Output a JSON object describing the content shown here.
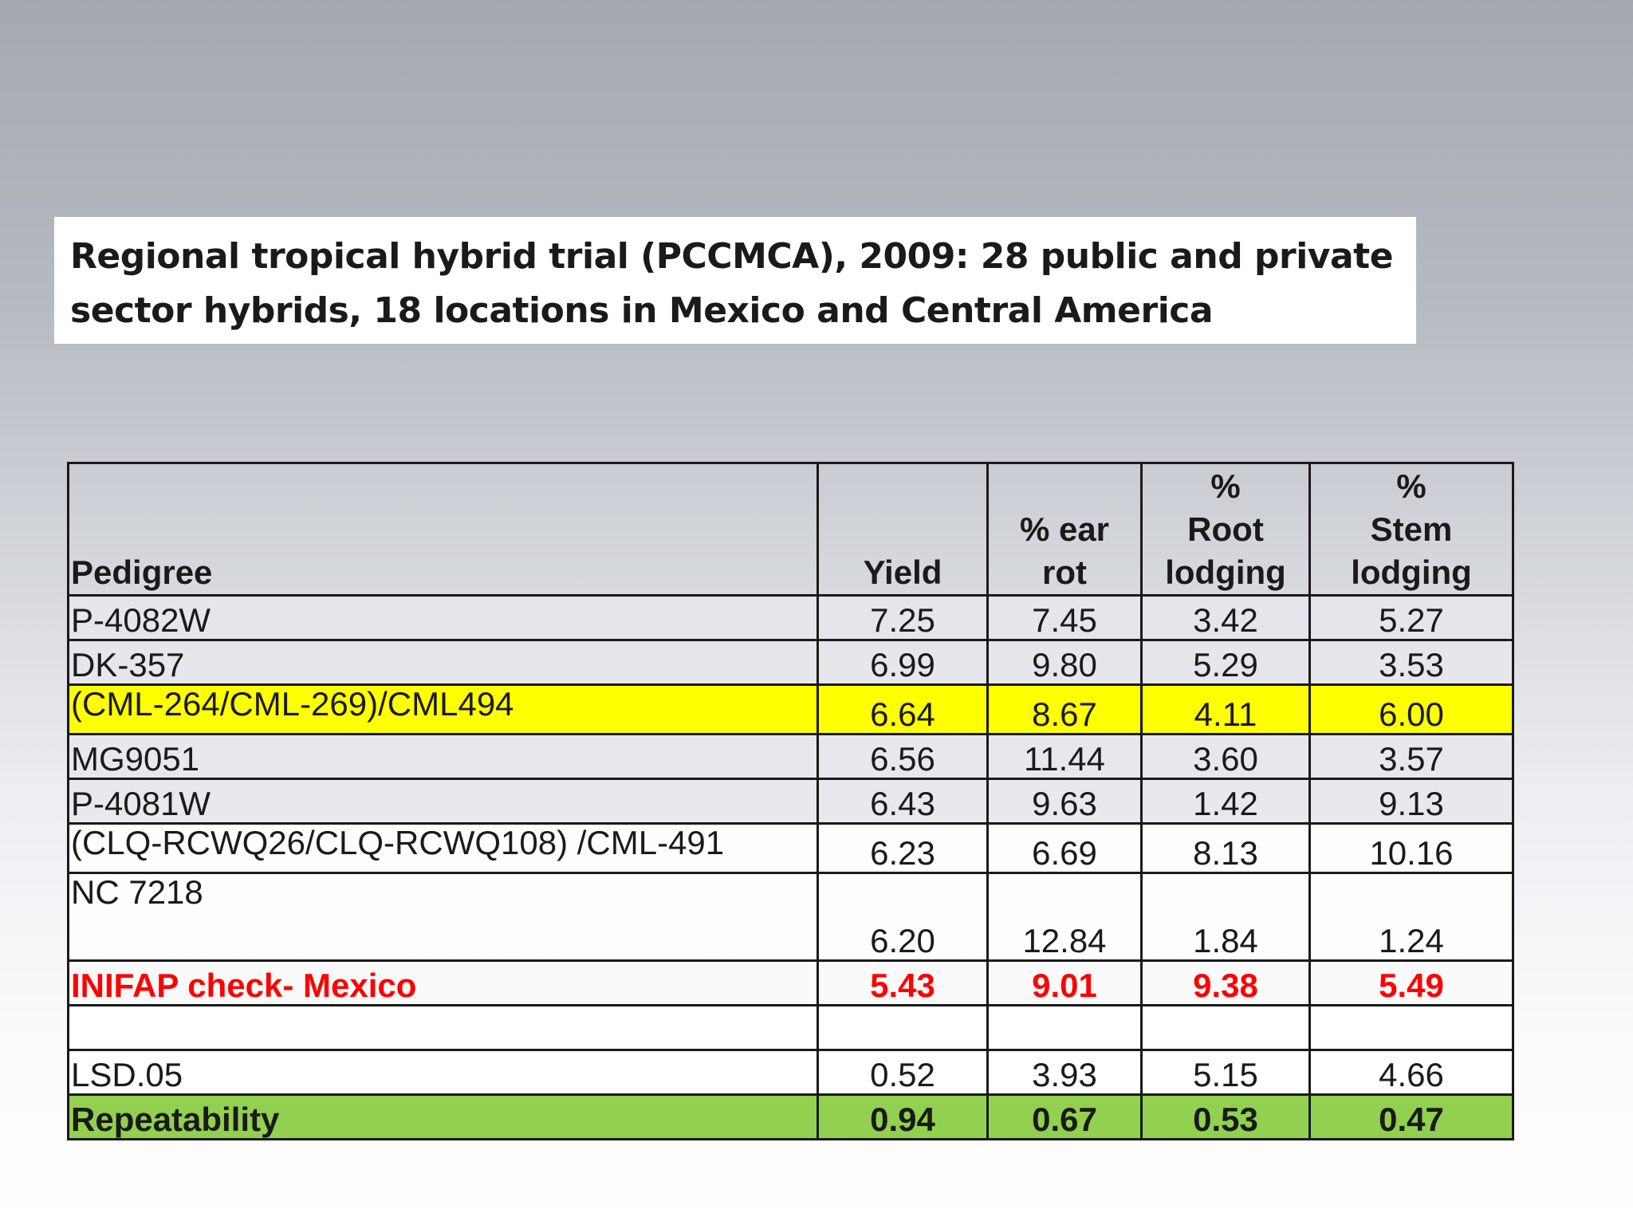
{
  "slide": {
    "title_line1": "Regional tropical hybrid trial (PCCMCA), 2009: 28 public and private",
    "title_line2": "sector hybrids, 18 locations in Mexico and Central America"
  },
  "table": {
    "headers": {
      "pedigree": "Pedigree",
      "yield": "Yield",
      "ear_rot_line1": "% ear",
      "ear_rot_line2": "rot",
      "root_line1": "%",
      "root_line2": "Root",
      "root_line3": "lodging",
      "stem_line1": "%",
      "stem_line2": "Stem",
      "stem_line3": "lodging"
    },
    "rows": [
      {
        "pedigree": "P-4082W",
        "yield": "7.25",
        "ear_rot": "7.45",
        "root_lodging": "3.42",
        "stem_lodging": "5.27"
      },
      {
        "pedigree": "DK-357",
        "yield": "6.99",
        "ear_rot": "9.80",
        "root_lodging": "5.29",
        "stem_lodging": "3.53"
      },
      {
        "pedigree": "(CML-264/CML-269)/CML494",
        "yield": "6.64",
        "ear_rot": "8.67",
        "root_lodging": "4.11",
        "stem_lodging": "6.00"
      },
      {
        "pedigree": "MG9051",
        "yield": "6.56",
        "ear_rot": "11.44",
        "root_lodging": "3.60",
        "stem_lodging": "3.57"
      },
      {
        "pedigree": "P-4081W",
        "yield": "6.43",
        "ear_rot": "9.63",
        "root_lodging": "1.42",
        "stem_lodging": "9.13"
      },
      {
        "pedigree": "(CLQ-RCWQ26/CLQ-RCWQ108) /CML-491",
        "yield": "6.23",
        "ear_rot": "6.69",
        "root_lodging": "8.13",
        "stem_lodging": "10.16"
      },
      {
        "pedigree": "NC 7218",
        "yield": "6.20",
        "ear_rot": "12.84",
        "root_lodging": "1.84",
        "stem_lodging": "1.24"
      },
      {
        "pedigree": "INIFAP check- Mexico",
        "yield": "5.43",
        "ear_rot": "9.01",
        "root_lodging": "9.38",
        "stem_lodging": "5.49"
      },
      {
        "pedigree": "",
        "yield": "",
        "ear_rot": "",
        "root_lodging": "",
        "stem_lodging": ""
      },
      {
        "pedigree": "LSD.05",
        "yield": "0.52",
        "ear_rot": "3.93",
        "root_lodging": "5.15",
        "stem_lodging": "4.66"
      },
      {
        "pedigree": "Repeatability",
        "yield": "0.94",
        "ear_rot": "0.67",
        "root_lodging": "0.53",
        "stem_lodging": "0.47"
      }
    ]
  },
  "colors": {
    "highlight_yellow": "#ffff00",
    "check_red": "#ff0000",
    "repeatability_green": "#92d050"
  }
}
